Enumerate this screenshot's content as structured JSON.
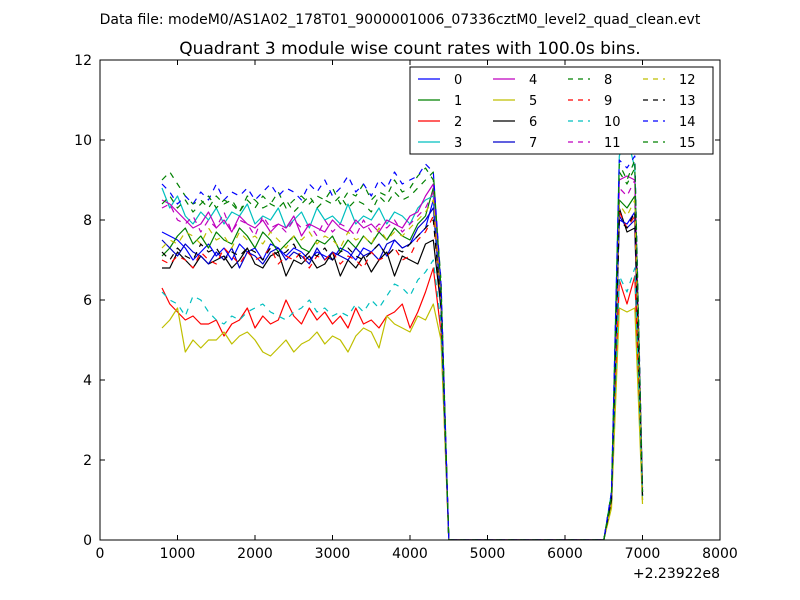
{
  "suptitle": "Data file: modeM0/AS1A02_178T01_9000001006_07336cztM0_level2_quad_clean.evt",
  "chart_data": {
    "type": "line",
    "title": "Quadrant 3 module wise count rates with 100.0s bins.",
    "xlabel": "",
    "ylabel": "",
    "x_offset_label": "+2.23922e8",
    "xlim": [
      0,
      8000
    ],
    "ylim": [
      0,
      12
    ],
    "xticks": [
      "0",
      "1000",
      "2000",
      "3000",
      "4000",
      "5000",
      "6000",
      "7000",
      "8000"
    ],
    "yticks": [
      "0",
      "2",
      "4",
      "6",
      "8",
      "10",
      "12"
    ],
    "grid": false,
    "legend_position": "top-right",
    "legend_columns": 4,
    "x": [
      800,
      900,
      1000,
      1100,
      1200,
      1300,
      1400,
      1500,
      1600,
      1700,
      1800,
      1900,
      2000,
      2100,
      2200,
      2300,
      2400,
      2500,
      2600,
      2700,
      2800,
      2900,
      3000,
      3100,
      3200,
      3300,
      3400,
      3500,
      3600,
      3700,
      3800,
      3900,
      4000,
      4100,
      4200,
      4300,
      4400,
      4500,
      4600,
      4700,
      4800,
      4900,
      5000,
      5100,
      5200,
      5300,
      5400,
      5500,
      5600,
      5700,
      5800,
      5900,
      6000,
      6100,
      6200,
      6300,
      6400,
      6500,
      6600,
      6700,
      6800,
      6900,
      7000
    ],
    "series": [
      {
        "name": "0",
        "color": "#0000ff",
        "dash": "solid",
        "values": [
          7.7,
          7.6,
          7.5,
          7.3,
          7.0,
          7.2,
          7.4,
          7.1,
          7.3,
          7.0,
          7.4,
          7.2,
          7.3,
          7.0,
          7.4,
          7.3,
          7.1,
          7.3,
          7.2,
          7.0,
          7.2,
          7.1,
          7.0,
          7.3,
          7.2,
          7.0,
          7.3,
          7.2,
          7.4,
          7.1,
          7.5,
          7.3,
          7.4,
          7.6,
          7.8,
          8.5,
          6.0,
          0,
          0,
          0,
          0,
          0,
          0,
          0,
          0,
          0,
          0,
          0,
          0,
          0,
          0,
          0,
          0,
          0,
          0,
          0,
          0,
          0,
          1.0,
          8.0,
          7.9,
          8.2,
          1.2
        ]
      },
      {
        "name": "1",
        "color": "#008000",
        "dash": "solid",
        "values": [
          7.1,
          7.3,
          7.6,
          7.8,
          7.4,
          7.6,
          7.3,
          7.7,
          7.5,
          7.4,
          7.8,
          7.6,
          7.3,
          7.7,
          7.5,
          7.2,
          7.4,
          7.6,
          7.3,
          7.2,
          7.5,
          7.4,
          7.6,
          7.2,
          7.5,
          7.3,
          7.6,
          7.4,
          7.7,
          7.5,
          7.8,
          7.6,
          7.5,
          7.9,
          8.1,
          8.8,
          6.1,
          0,
          0,
          0,
          0,
          0,
          0,
          0,
          0,
          0,
          0,
          0,
          0,
          0,
          0,
          0,
          0,
          0,
          0,
          0,
          0,
          0,
          1.1,
          8.5,
          8.3,
          8.6,
          1.1
        ]
      },
      {
        "name": "2",
        "color": "#ff0000",
        "dash": "solid",
        "values": [
          6.3,
          5.9,
          5.7,
          5.5,
          5.6,
          5.4,
          5.4,
          5.5,
          5.1,
          5.4,
          5.5,
          5.8,
          5.3,
          5.6,
          5.4,
          5.5,
          6.0,
          5.6,
          5.4,
          5.8,
          5.5,
          5.7,
          5.4,
          5.6,
          5.3,
          5.8,
          5.4,
          5.5,
          5.3,
          5.6,
          5.7,
          5.9,
          5.3,
          5.7,
          6.2,
          6.8,
          5.2,
          0,
          0,
          0,
          0,
          0,
          0,
          0,
          0,
          0,
          0,
          0,
          0,
          0,
          0,
          0,
          0,
          0,
          0,
          0,
          0,
          0,
          1.0,
          6.5,
          5.9,
          6.6,
          1.0
        ]
      },
      {
        "name": "3",
        "color": "#00bfbf",
        "dash": "solid",
        "values": [
          8.8,
          8.3,
          8.6,
          8.1,
          7.9,
          8.2,
          8.0,
          8.3,
          7.9,
          8.2,
          8.1,
          8.4,
          7.9,
          8.1,
          8.0,
          8.3,
          7.8,
          8.0,
          8.2,
          7.8,
          8.3,
          8.0,
          8.1,
          7.9,
          8.4,
          7.9,
          8.1,
          8.0,
          8.3,
          7.9,
          8.2,
          8.1,
          7.9,
          8.3,
          8.5,
          8.6,
          6.2,
          0,
          0,
          0,
          0,
          0,
          0,
          0,
          0,
          0,
          0,
          0,
          0,
          0,
          0,
          0,
          0,
          0,
          0,
          0,
          0,
          0,
          1.2,
          9.6,
          10.1,
          9.3,
          1.0
        ]
      },
      {
        "name": "4",
        "color": "#bf00bf",
        "dash": "solid",
        "values": [
          8.5,
          8.4,
          8.2,
          8.0,
          7.8,
          7.9,
          8.2,
          7.8,
          8.0,
          7.7,
          8.1,
          7.9,
          7.8,
          8.0,
          7.7,
          7.9,
          7.8,
          8.1,
          7.6,
          7.9,
          7.8,
          7.7,
          8.0,
          7.8,
          7.7,
          8.0,
          7.8,
          7.9,
          7.7,
          8.0,
          7.9,
          7.8,
          8.1,
          8.2,
          8.6,
          8.9,
          6.3,
          0,
          0,
          0,
          0,
          0,
          0,
          0,
          0,
          0,
          0,
          0,
          0,
          0,
          0,
          0,
          0,
          0,
          0,
          0,
          0,
          0,
          1.1,
          9.0,
          9.1,
          9.0,
          1.3
        ]
      },
      {
        "name": "5",
        "color": "#bfbf00",
        "dash": "solid",
        "values": [
          5.3,
          5.5,
          5.8,
          4.7,
          5.0,
          4.8,
          5.0,
          5.0,
          5.2,
          4.9,
          5.1,
          5.2,
          5.0,
          4.7,
          4.6,
          4.8,
          5.0,
          4.7,
          4.9,
          5.0,
          5.2,
          4.9,
          5.1,
          5.0,
          4.7,
          5.1,
          5.3,
          5.2,
          4.8,
          5.6,
          5.4,
          5.3,
          5.2,
          5.6,
          5.5,
          5.9,
          5.0,
          0,
          0,
          0,
          0,
          0,
          0,
          0,
          0,
          0,
          0,
          0,
          0,
          0,
          0,
          0,
          0,
          0,
          0,
          0,
          0,
          0,
          0.8,
          5.8,
          5.7,
          5.8,
          0.9
        ]
      },
      {
        "name": "6",
        "color": "#000000",
        "dash": "solid",
        "values": [
          6.8,
          6.8,
          7.2,
          7.0,
          6.8,
          7.1,
          6.9,
          7.0,
          7.1,
          6.8,
          7.0,
          7.3,
          6.9,
          6.8,
          7.1,
          7.2,
          6.6,
          7.0,
          6.9,
          7.1,
          6.8,
          6.9,
          7.2,
          6.6,
          7.0,
          6.8,
          7.1,
          6.7,
          7.0,
          7.2,
          6.6,
          7.1,
          7.0,
          6.9,
          7.4,
          7.5,
          5.8,
          0,
          0,
          0,
          0,
          0,
          0,
          0,
          0,
          0,
          0,
          0,
          0,
          0,
          0,
          0,
          0,
          0,
          0,
          0,
          0,
          0,
          1.0,
          8.3,
          7.7,
          7.8,
          1.2
        ]
      },
      {
        "name": "7",
        "color": "#0000cc",
        "dash": "solid",
        "values": [
          7.5,
          7.3,
          7.1,
          7.4,
          7.2,
          7.1,
          6.9,
          7.2,
          7.0,
          7.3,
          6.8,
          7.2,
          7.1,
          6.9,
          7.2,
          7.3,
          7.0,
          7.2,
          7.1,
          6.9,
          7.3,
          7.0,
          7.2,
          7.1,
          7.0,
          7.3,
          7.1,
          7.2,
          7.0,
          7.4,
          7.5,
          7.3,
          7.4,
          7.8,
          8.0,
          8.3,
          5.9,
          0,
          0,
          0,
          0,
          0,
          0,
          0,
          0,
          0,
          0,
          0,
          0,
          0,
          0,
          0,
          0,
          0,
          0,
          0,
          0,
          0,
          1.1,
          8.1,
          7.8,
          8.0,
          1.1
        ]
      },
      {
        "name": "8",
        "color": "#008000",
        "dash": "dashed",
        "values": [
          9.0,
          9.2,
          8.9,
          8.6,
          8.4,
          8.5,
          8.3,
          8.6,
          8.4,
          8.5,
          8.2,
          8.6,
          8.5,
          8.3,
          8.4,
          8.7,
          8.3,
          8.5,
          8.6,
          8.4,
          8.6,
          8.5,
          8.8,
          8.4,
          8.7,
          8.6,
          8.9,
          8.5,
          8.7,
          8.6,
          9.0,
          8.7,
          8.8,
          9.1,
          9.3,
          9.0,
          6.5,
          0,
          0,
          0,
          0,
          0,
          0,
          0,
          0,
          0,
          0,
          0,
          0,
          0,
          0,
          0,
          0,
          0,
          0,
          0,
          0,
          0,
          1.2,
          9.2,
          8.9,
          9.3,
          1.2
        ]
      },
      {
        "name": "9",
        "color": "#ff0000",
        "dash": "dashed",
        "values": [
          7.0,
          6.9,
          7.1,
          7.0,
          6.8,
          7.2,
          7.0,
          6.9,
          7.3,
          7.1,
          6.9,
          7.2,
          7.0,
          7.1,
          7.3,
          6.9,
          7.1,
          7.0,
          7.2,
          6.8,
          7.1,
          7.0,
          7.2,
          6.9,
          7.1,
          7.0,
          6.8,
          7.2,
          7.0,
          7.1,
          7.3,
          7.0,
          7.1,
          7.5,
          7.7,
          8.1,
          5.9,
          0,
          0,
          0,
          0,
          0,
          0,
          0,
          0,
          0,
          0,
          0,
          0,
          0,
          0,
          0,
          0,
          0,
          0,
          0,
          0,
          0,
          1.0,
          8.2,
          7.8,
          8.1,
          1.1
        ]
      },
      {
        "name": "10",
        "color": "#00bfbf",
        "dash": "dashed",
        "values": [
          6.2,
          6.0,
          5.9,
          5.6,
          6.1,
          6.0,
          5.7,
          5.5,
          5.4,
          5.6,
          5.5,
          5.7,
          5.8,
          5.9,
          5.7,
          5.6,
          5.5,
          5.7,
          5.8,
          6.0,
          5.7,
          5.8,
          5.6,
          5.7,
          5.6,
          5.9,
          5.7,
          6.0,
          5.8,
          6.1,
          6.4,
          6.3,
          6.1,
          6.5,
          6.7,
          7.0,
          5.4,
          0,
          0,
          0,
          0,
          0,
          0,
          0,
          0,
          0,
          0,
          0,
          0,
          0,
          0,
          0,
          0,
          0,
          0,
          0,
          0,
          0,
          1.0,
          6.6,
          6.2,
          6.8,
          1.1
        ]
      },
      {
        "name": "11",
        "color": "#bf00bf",
        "dash": "dashed",
        "values": [
          8.3,
          8.4,
          8.0,
          7.9,
          8.1,
          7.7,
          8.0,
          7.8,
          8.2,
          7.7,
          8.0,
          7.9,
          7.6,
          8.1,
          7.8,
          7.9,
          7.7,
          8.0,
          7.8,
          7.9,
          7.6,
          8.0,
          7.7,
          7.9,
          7.8,
          7.6,
          8.0,
          7.7,
          7.9,
          7.8,
          8.0,
          7.7,
          7.9,
          8.1,
          8.3,
          8.7,
          6.2,
          0,
          0,
          0,
          0,
          0,
          0,
          0,
          0,
          0,
          0,
          0,
          0,
          0,
          0,
          0,
          0,
          0,
          0,
          0,
          0,
          0,
          1.1,
          8.8,
          8.6,
          9.0,
          1.2
        ]
      },
      {
        "name": "12",
        "color": "#bfbf00",
        "dash": "dashed",
        "values": [
          7.3,
          7.5,
          7.4,
          7.7,
          7.6,
          7.4,
          7.8,
          7.5,
          7.6,
          7.3,
          7.7,
          7.5,
          7.6,
          7.4,
          7.7,
          7.5,
          7.3,
          7.6,
          7.5,
          7.7,
          7.4,
          7.6,
          7.5,
          7.3,
          7.7,
          7.5,
          7.6,
          7.4,
          7.8,
          7.5,
          7.7,
          7.6,
          7.8,
          8.0,
          8.2,
          8.5,
          6.0,
          0,
          0,
          0,
          0,
          0,
          0,
          0,
          0,
          0,
          0,
          0,
          0,
          0,
          0,
          0,
          0,
          0,
          0,
          0,
          0,
          0,
          0.9,
          8.4,
          8.1,
          8.5,
          1.0
        ]
      },
      {
        "name": "13",
        "color": "#000000",
        "dash": "dashed",
        "values": [
          7.2,
          7.0,
          7.3,
          7.1,
          7.0,
          7.4,
          7.2,
          7.3,
          7.0,
          7.2,
          7.1,
          7.3,
          7.2,
          7.0,
          7.3,
          7.1,
          7.2,
          7.4,
          7.0,
          7.2,
          7.1,
          7.3,
          7.0,
          7.2,
          7.3,
          7.1,
          7.0,
          7.2,
          7.4,
          7.1,
          7.3,
          7.2,
          7.4,
          7.6,
          7.8,
          8.0,
          5.9,
          0,
          0,
          0,
          0,
          0,
          0,
          0,
          0,
          0,
          0,
          0,
          0,
          0,
          0,
          0,
          0,
          0,
          0,
          0,
          0,
          0,
          1.0,
          8.0,
          7.8,
          8.2,
          1.1
        ]
      },
      {
        "name": "14",
        "color": "#0000ff",
        "dash": "dashed",
        "values": [
          8.9,
          8.7,
          8.4,
          8.6,
          8.4,
          8.7,
          8.5,
          8.9,
          8.5,
          8.7,
          8.6,
          8.8,
          8.5,
          8.7,
          8.9,
          8.6,
          8.8,
          8.7,
          8.5,
          8.9,
          8.7,
          9.0,
          8.6,
          8.8,
          9.1,
          8.7,
          8.9,
          8.6,
          9.0,
          8.8,
          9.2,
          8.9,
          9.0,
          9.1,
          9.4,
          9.2,
          6.4,
          0,
          0,
          0,
          0,
          0,
          0,
          0,
          0,
          0,
          0,
          0,
          0,
          0,
          0,
          0,
          0,
          0,
          0,
          0,
          0,
          0,
          1.2,
          9.5,
          9.3,
          9.6,
          1.3
        ]
      },
      {
        "name": "15",
        "color": "#008000",
        "dash": "dashed",
        "values": [
          8.4,
          8.6,
          8.3,
          8.5,
          8.2,
          8.4,
          8.6,
          8.3,
          8.5,
          8.4,
          8.2,
          8.5,
          8.3,
          8.6,
          8.4,
          8.3,
          8.5,
          8.2,
          8.4,
          8.6,
          8.3,
          8.5,
          8.4,
          8.6,
          8.3,
          8.5,
          8.4,
          8.2,
          8.6,
          8.4,
          8.7,
          8.5,
          8.6,
          8.8,
          9.0,
          9.2,
          6.3,
          0,
          0,
          0,
          0,
          0,
          0,
          0,
          0,
          0,
          0,
          0,
          0,
          0,
          0,
          0,
          0,
          0,
          0,
          0,
          0,
          0,
          1.1,
          9.4,
          9.0,
          9.5,
          1.2
        ]
      }
    ]
  }
}
